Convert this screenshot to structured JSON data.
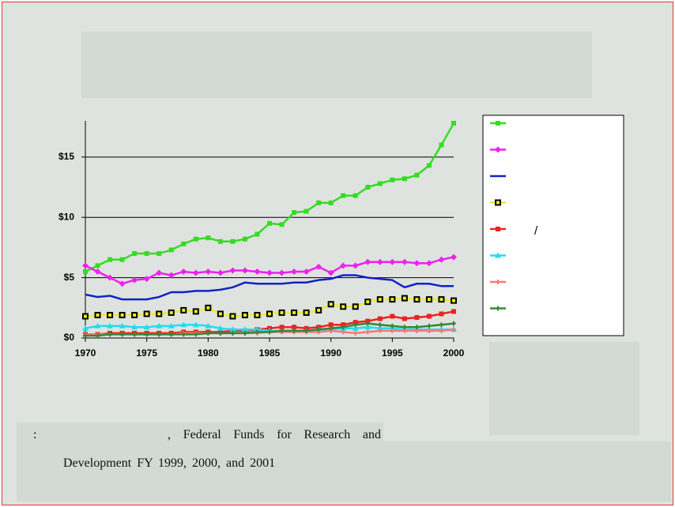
{
  "chart_data": {
    "type": "line",
    "x": [
      1970,
      1971,
      1972,
      1973,
      1974,
      1975,
      1976,
      1977,
      1978,
      1979,
      1980,
      1981,
      1982,
      1983,
      1984,
      1985,
      1986,
      1987,
      1988,
      1989,
      1990,
      1991,
      1992,
      1993,
      1994,
      1995,
      1996,
      1997,
      1998,
      1999,
      2000
    ],
    "xlim": [
      1970,
      2000
    ],
    "xticks": [
      1970,
      1975,
      1980,
      1985,
      1990,
      1995,
      2000
    ],
    "ylim": [
      0,
      18
    ],
    "yticks": [
      {
        "value": 0,
        "label": "$0"
      },
      {
        "value": 5,
        "label": "$5"
      },
      {
        "value": 10,
        "label": "$10"
      },
      {
        "value": 15,
        "label": "$15"
      }
    ],
    "grid": true,
    "series": [
      {
        "color": "#33dd22",
        "marker": "square",
        "values": [
          5.5,
          6,
          6.5,
          6.5,
          7,
          7,
          7,
          7.3,
          7.8,
          8.2,
          8.3,
          8,
          8,
          8.2,
          8.6,
          9.5,
          9.4,
          10.4,
          10.5,
          11.2,
          11.2,
          11.8,
          11.8,
          12.5,
          12.8,
          13.1,
          13.2,
          13.5,
          14.3,
          16,
          17.8
        ]
      },
      {
        "color": "#ee22ee",
        "marker": "diamond",
        "values": [
          6,
          5.5,
          5,
          4.5,
          4.8,
          4.9,
          5.4,
          5.2,
          5.5,
          5.4,
          5.5,
          5.4,
          5.6,
          5.6,
          5.5,
          5.4,
          5.4,
          5.5,
          5.5,
          5.9,
          5.4,
          6,
          6,
          6.3,
          6.3,
          6.3,
          6.3,
          6.2,
          6.2,
          6.5,
          6.7
        ]
      },
      {
        "color": "#1122cc",
        "marker": "none",
        "values": [
          3.6,
          3.4,
          3.5,
          3.2,
          3.2,
          3.2,
          3.4,
          3.8,
          3.8,
          3.9,
          3.9,
          4,
          4.2,
          4.6,
          4.5,
          4.5,
          4.5,
          4.6,
          4.6,
          4.8,
          4.9,
          5.2,
          5.2,
          5,
          4.9,
          4.8,
          4.2,
          4.5,
          4.5,
          4.3,
          4.3
        ]
      },
      {
        "color": "#eeee22",
        "marker": "boxed",
        "values": [
          1.8,
          1.9,
          1.9,
          1.9,
          1.9,
          2,
          2,
          2.1,
          2.3,
          2.2,
          2.5,
          2,
          1.8,
          1.9,
          1.9,
          2,
          2.1,
          2.1,
          2.1,
          2.3,
          2.8,
          2.6,
          2.6,
          3,
          3.2,
          3.2,
          3.3,
          3.2,
          3.2,
          3.2,
          3.1
        ]
      },
      {
        "name": "/",
        "color": "#ee2222",
        "marker": "square",
        "values": [
          0.3,
          0.3,
          0.4,
          0.4,
          0.4,
          0.4,
          0.4,
          0.4,
          0.5,
          0.5,
          0.5,
          0.5,
          0.6,
          0.6,
          0.7,
          0.8,
          0.9,
          0.9,
          0.8,
          0.9,
          1.1,
          1.1,
          1.3,
          1.4,
          1.6,
          1.8,
          1.6,
          1.7,
          1.8,
          2,
          2.2
        ]
      },
      {
        "color": "#22ddee",
        "marker": "triangle",
        "values": [
          0.8,
          1,
          1,
          1,
          0.9,
          0.9,
          1,
          1,
          1.1,
          1.1,
          1,
          0.8,
          0.7,
          0.7,
          0.7,
          0.6,
          0.6,
          0.6,
          0.6,
          0.7,
          0.7,
          0.8,
          0.8,
          0.9,
          0.8,
          0.8,
          0.7,
          0.7,
          0.7,
          0.7,
          0.7
        ]
      },
      {
        "color": "#ff7777",
        "marker": "star",
        "values": [
          0.3,
          0.3,
          0.3,
          0.3,
          0.3,
          0.3,
          0.3,
          0.3,
          0.4,
          0.4,
          0.4,
          0.4,
          0.4,
          0.4,
          0.4,
          0.5,
          0.5,
          0.5,
          0.5,
          0.5,
          0.6,
          0.5,
          0.4,
          0.5,
          0.6,
          0.6,
          0.6,
          0.6,
          0.6,
          0.6,
          0.7
        ]
      },
      {
        "color": "#338833",
        "marker": "plus",
        "values": [
          0.2,
          0.2,
          0.3,
          0.3,
          0.3,
          0.3,
          0.3,
          0.3,
          0.3,
          0.3,
          0.4,
          0.4,
          0.4,
          0.4,
          0.5,
          0.5,
          0.6,
          0.6,
          0.6,
          0.7,
          0.8,
          0.9,
          1.1,
          1.2,
          1.1,
          1,
          0.9,
          0.9,
          1,
          1.1,
          1.2
        ]
      }
    ]
  },
  "source": {
    "label": ":",
    "text": ", Federal Funds for Research and Development FY 1999, 2000, and 2001"
  }
}
